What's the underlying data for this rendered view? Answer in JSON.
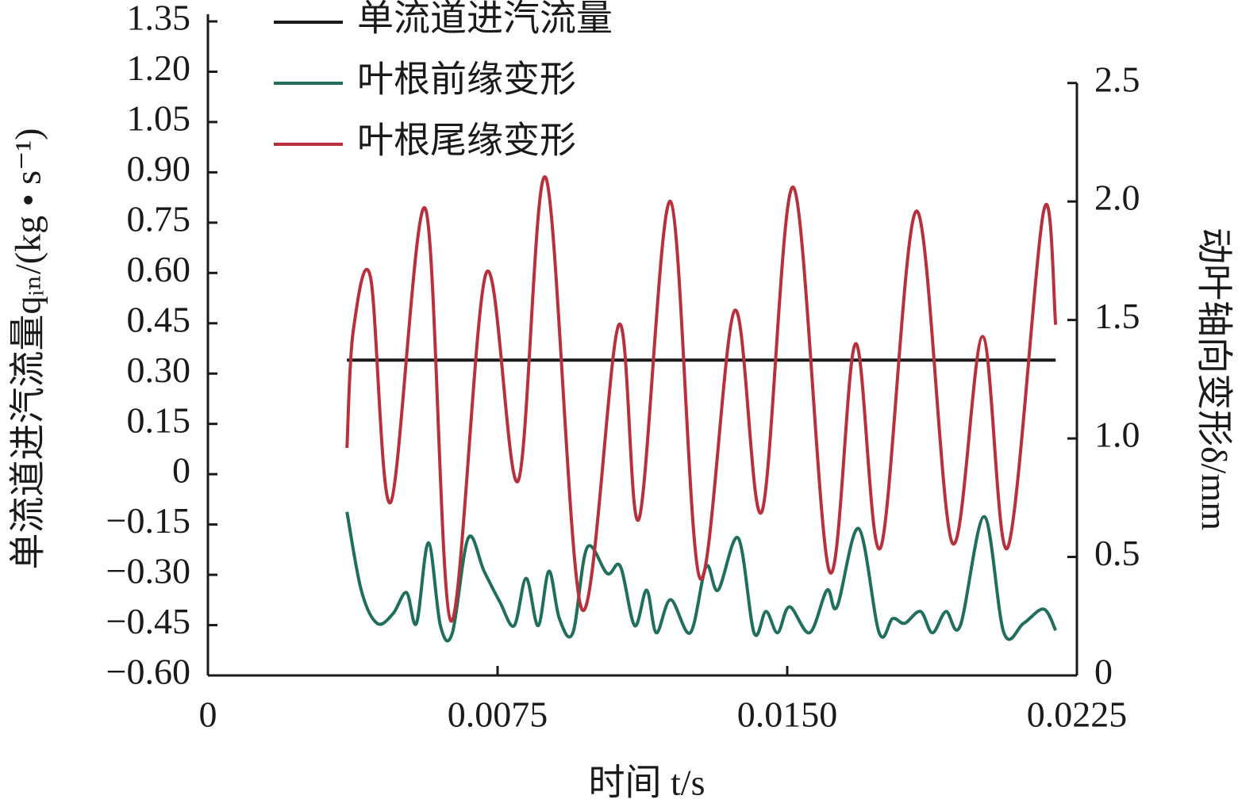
{
  "chart_data": {
    "type": "line",
    "xlabel": "时间 t/s",
    "ylabel": "单流道进汽流量qᵢₙ/(kg • s⁻¹)",
    "y2label": "动叶轴向变形δ/mm",
    "xlim": [
      0,
      0.0225
    ],
    "xticks": [
      0,
      0.0075,
      {
        "value": 0.015,
        "label": "0.0150"
      },
      {
        "value": 0.0225,
        "label": "0.0225"
      }
    ],
    "ylim": [
      -0.6,
      1.35
    ],
    "yticks": [
      {
        "value": -0.6,
        "label": "−0.60"
      },
      {
        "value": -0.45,
        "label": "−0.45"
      },
      {
        "value": -0.3,
        "label": "−0.30"
      },
      {
        "value": -0.15,
        "label": "−0.15"
      },
      0,
      0.15,
      {
        "value": 0.3,
        "label": "0.30"
      },
      0.45,
      {
        "value": 0.6,
        "label": "0.60"
      },
      0.75,
      {
        "value": 0.9,
        "label": "0.90"
      },
      1.05,
      {
        "value": 1.2,
        "label": "1.20"
      },
      1.35
    ],
    "y2lim": [
      0,
      2.76
    ],
    "y2ticks": [
      0,
      0.5,
      {
        "value": 1,
        "label": "1.0"
      },
      1.5,
      {
        "value": 2,
        "label": "2.0"
      },
      2.5
    ],
    "legend": "upper left",
    "series": [
      {
        "name": "单流道进汽流量",
        "color": "#1a1a1a",
        "axis": "y",
        "x": [
          0.0036,
          0.02195
        ],
        "values": [
          0.34,
          0.34
        ]
      },
      {
        "name": "叶根前缘变形",
        "color": "#1f6f5c",
        "axis": "y2",
        "x": [
          0.0036,
          0.00397,
          0.00438,
          0.00479,
          0.00514,
          0.0054,
          0.00571,
          0.00602,
          0.00633,
          0.00674,
          0.00715,
          0.00756,
          0.00793,
          0.00824,
          0.00855,
          0.00883,
          0.0091,
          0.00945,
          0.00982,
          0.01034,
          0.01068,
          0.01105,
          0.01136,
          0.01161,
          0.01198,
          0.01249,
          0.0129,
          0.01321,
          0.01373,
          0.01414,
          0.01445,
          0.01475,
          0.01506,
          0.01558,
          0.01603,
          0.01629,
          0.01685,
          0.01738,
          0.01773,
          0.01804,
          0.01845,
          0.01876,
          0.01911,
          0.01948,
          0.0201,
          0.02061,
          0.02112,
          0.02164,
          0.02195
        ],
        "values": [
          0.69,
          0.36,
          0.22,
          0.26,
          0.35,
          0.22,
          0.56,
          0.21,
          0.18,
          0.58,
          0.44,
          0.31,
          0.21,
          0.41,
          0.21,
          0.44,
          0.24,
          0.18,
          0.54,
          0.43,
          0.46,
          0.21,
          0.36,
          0.18,
          0.32,
          0.18,
          0.46,
          0.36,
          0.58,
          0.18,
          0.27,
          0.18,
          0.29,
          0.18,
          0.36,
          0.29,
          0.62,
          0.18,
          0.24,
          0.22,
          0.27,
          0.18,
          0.27,
          0.21,
          0.67,
          0.18,
          0.22,
          0.28,
          0.19
        ]
      },
      {
        "name": "叶根尾缘变形",
        "color": "#b8303c",
        "axis": "y2",
        "x": [
          0.0036,
          0.00376,
          0.00421,
          0.00473,
          0.00563,
          0.00629,
          0.00721,
          0.00803,
          0.00875,
          0.00968,
          0.01064,
          0.01116,
          0.01198,
          0.01274,
          0.01364,
          0.01434,
          0.01516,
          0.01609,
          0.01677,
          0.01742,
          0.01835,
          0.01927,
          0.02006,
          0.02071,
          0.02164,
          0.02195
        ],
        "values": [
          0.96,
          1.45,
          1.68,
          0.73,
          1.97,
          0.23,
          1.7,
          0.82,
          2.1,
          0.28,
          1.48,
          0.66,
          2.0,
          0.41,
          1.54,
          0.69,
          2.06,
          0.44,
          1.4,
          0.54,
          1.96,
          0.56,
          1.43,
          0.54,
          1.96,
          1.48
        ]
      }
    ]
  }
}
